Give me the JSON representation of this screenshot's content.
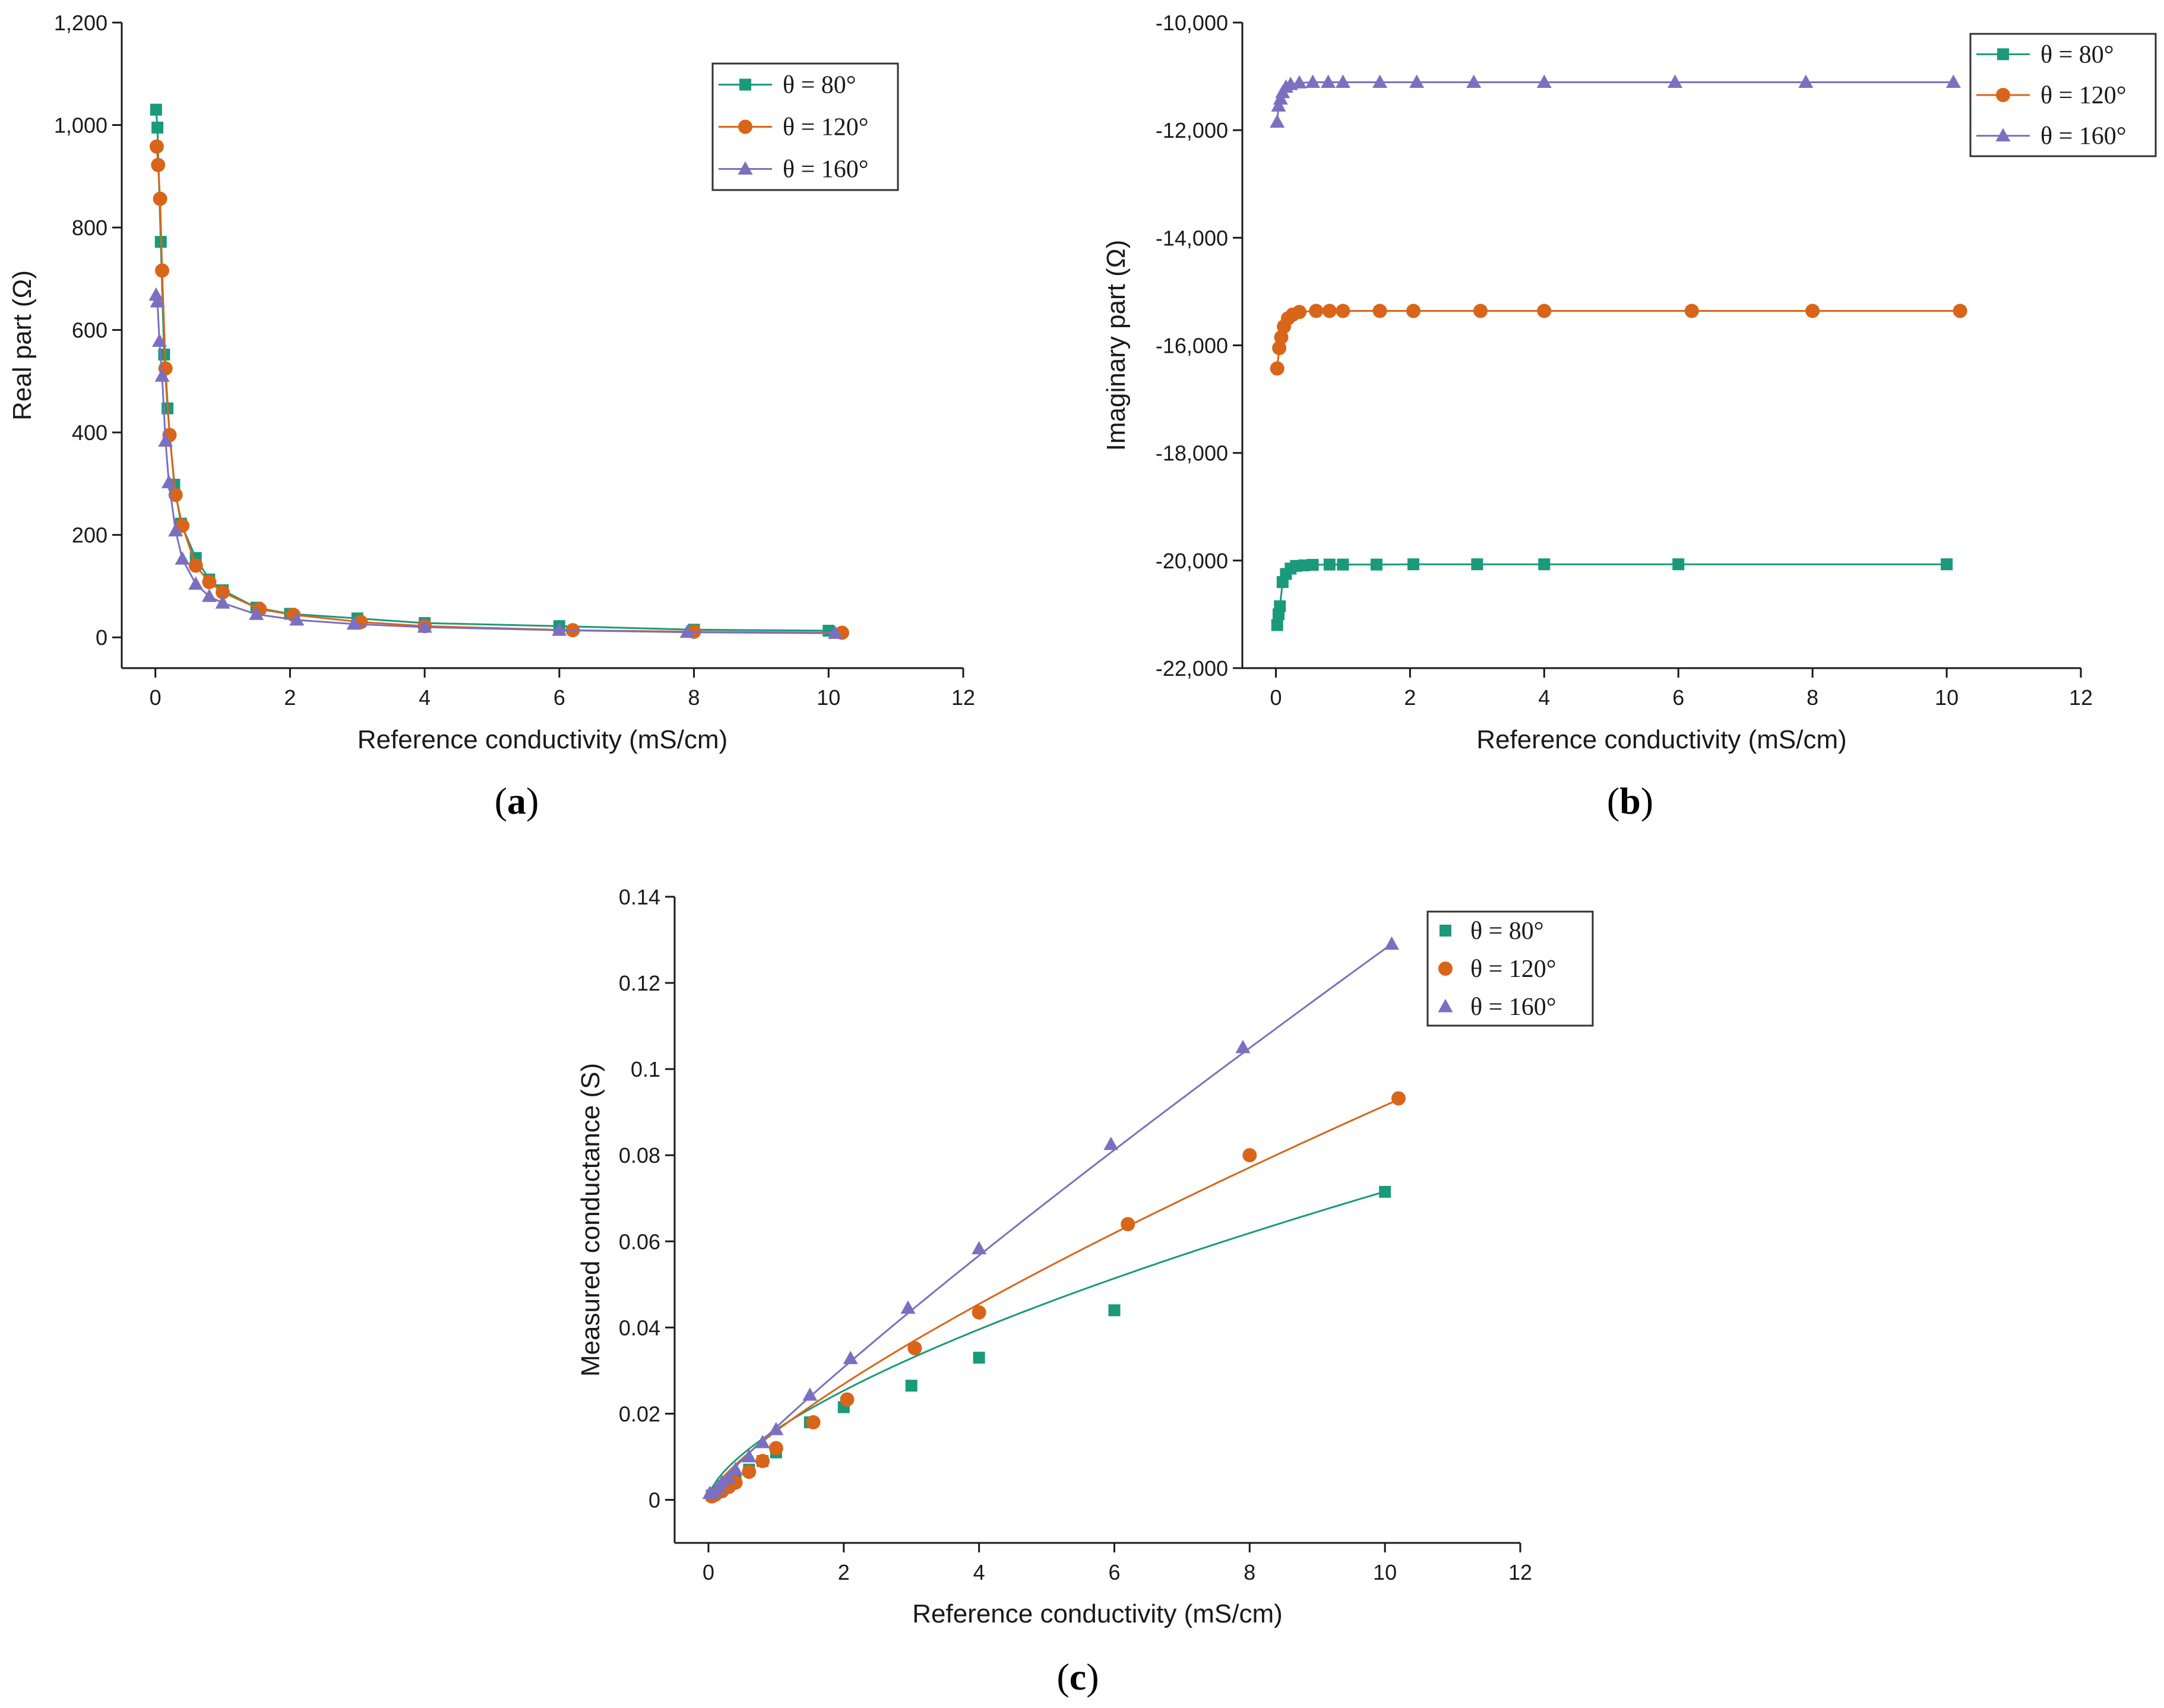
{
  "figure": {
    "colors": {
      "s80": "#1a9a7a",
      "s120": "#d9651a",
      "s160": "#7b70c0",
      "axis": "#1a1a1a"
    }
  },
  "chart_data": [
    {
      "panel": "a",
      "panel_label": {
        "open": "(",
        "letter": "a",
        "close": ")"
      },
      "type": "line",
      "title": "",
      "xlabel": "Reference conductivity (mS/cm)",
      "ylabel": "Real part (Ω)",
      "xlim": [
        -0.5,
        12
      ],
      "ylim": [
        -60,
        1200
      ],
      "xticks": [
        0,
        2,
        4,
        6,
        8,
        10,
        12
      ],
      "xtick_labels": [
        "0",
        "2",
        "4",
        "6",
        "8",
        "10",
        "12"
      ],
      "yticks": [
        0,
        200,
        400,
        600,
        800,
        1000,
        1200
      ],
      "ytick_labels": [
        "0",
        "200",
        "400",
        "600",
        "800",
        "1,000",
        "1,200"
      ],
      "legend": {
        "placement": "top-right",
        "lines": true
      },
      "series": [
        {
          "name": "θ = 80°",
          "marker": "square",
          "color": "#1a9a7a",
          "line": true,
          "x": [
            0.01,
            0.03,
            0.08,
            0.13,
            0.18,
            0.28,
            0.38,
            0.6,
            0.8,
            1.0,
            1.5,
            2.0,
            3.0,
            4.0,
            6.0,
            8.0,
            10.0
          ],
          "y": [
            1030,
            995,
            772,
            552,
            447,
            298,
            222,
            155,
            113,
            92,
            58,
            46,
            37,
            28,
            22,
            15,
            13
          ]
        },
        {
          "name": "θ = 120°",
          "marker": "circle",
          "color": "#d9651a",
          "line": true,
          "x": [
            0.02,
            0.04,
            0.07,
            0.1,
            0.15,
            0.21,
            0.3,
            0.4,
            0.6,
            0.8,
            1.0,
            1.55,
            2.05,
            3.05,
            4.0,
            6.2,
            8.0,
            10.2
          ],
          "y": [
            958,
            922,
            856,
            716,
            525,
            395,
            278,
            218,
            140,
            108,
            88,
            55,
            44,
            30,
            22,
            14,
            11,
            9
          ]
        },
        {
          "name": "θ = 160°",
          "marker": "triangle",
          "color": "#7b70c0",
          "line": true,
          "x": [
            0.01,
            0.03,
            0.06,
            0.1,
            0.15,
            0.2,
            0.3,
            0.4,
            0.6,
            0.8,
            1.0,
            1.5,
            2.1,
            2.95,
            4.0,
            6.0,
            7.9,
            10.1
          ],
          "y": [
            668,
            655,
            578,
            510,
            383,
            302,
            208,
            153,
            104,
            80,
            67,
            45,
            34,
            26,
            20,
            14,
            10,
            8
          ]
        }
      ]
    },
    {
      "panel": "b",
      "panel_label": {
        "open": "(",
        "letter": "b",
        "close": ")"
      },
      "type": "line",
      "title": "",
      "xlabel": "Reference conductivity (mS/cm)",
      "ylabel": "Imaginary part (Ω)",
      "xlim": [
        -0.5,
        12
      ],
      "ylim": [
        -22000,
        -10000
      ],
      "xticks": [
        0,
        2,
        4,
        6,
        8,
        10,
        12
      ],
      "xtick_labels": [
        "0",
        "2",
        "4",
        "6",
        "8",
        "10",
        "12"
      ],
      "yticks": [
        -22000,
        -20000,
        -18000,
        -16000,
        -14000,
        -12000,
        -10000
      ],
      "ytick_labels": [
        "-22,000",
        "-20,000",
        "-18,000",
        "-16,000",
        "-14,000",
        "-12,000",
        "-10,000"
      ],
      "legend": {
        "placement": "top-right",
        "lines": true
      },
      "series": [
        {
          "name": "θ = 80°",
          "marker": "square",
          "color": "#1a9a7a",
          "line": true,
          "x": [
            0.02,
            0.04,
            0.06,
            0.1,
            0.15,
            0.22,
            0.3,
            0.42,
            0.55,
            0.8,
            1.0,
            1.5,
            2.05,
            3.0,
            4.0,
            6.0,
            10.0
          ],
          "y": [
            -21200,
            -21000,
            -20850,
            -20400,
            -20250,
            -20150,
            -20100,
            -20090,
            -20080,
            -20075,
            -20075,
            -20075,
            -20070,
            -20070,
            -20070,
            -20070,
            -20070
          ]
        },
        {
          "name": "θ = 120°",
          "marker": "circle",
          "color": "#d9651a",
          "line": true,
          "x": [
            0.02,
            0.05,
            0.08,
            0.12,
            0.18,
            0.25,
            0.35,
            0.6,
            0.8,
            1.0,
            1.55,
            2.05,
            3.05,
            4.0,
            6.2,
            8.0,
            10.2
          ],
          "y": [
            -16430,
            -16050,
            -15850,
            -15650,
            -15500,
            -15430,
            -15380,
            -15360,
            -15360,
            -15360,
            -15360,
            -15360,
            -15360,
            -15360,
            -15360,
            -15360,
            -15360
          ]
        },
        {
          "name": "θ = 160°",
          "marker": "triangle",
          "color": "#7b70c0",
          "line": true,
          "x": [
            0.02,
            0.04,
            0.07,
            0.1,
            0.15,
            0.22,
            0.35,
            0.55,
            0.78,
            1.0,
            1.55,
            2.1,
            2.95,
            4.0,
            5.95,
            7.9,
            10.1
          ],
          "y": [
            -11850,
            -11550,
            -11420,
            -11300,
            -11200,
            -11150,
            -11120,
            -11110,
            -11110,
            -11110,
            -11110,
            -11110,
            -11110,
            -11110,
            -11110,
            -11110,
            -11110
          ]
        }
      ]
    },
    {
      "panel": "c",
      "panel_label": {
        "open": "(",
        "letter": "c",
        "close": ")"
      },
      "type": "scatter",
      "title": "",
      "xlabel": "Reference conductivity (mS/cm)",
      "ylabel": "Measured conductance (S)",
      "xlim": [
        -0.5,
        12
      ],
      "ylim": [
        -0.01,
        0.14
      ],
      "xticks": [
        0,
        2,
        4,
        6,
        8,
        10,
        12
      ],
      "xtick_labels": [
        "0",
        "2",
        "4",
        "6",
        "8",
        "10",
        "12"
      ],
      "yticks": [
        0,
        0.02,
        0.04,
        0.06,
        0.08,
        0.1,
        0.12,
        0.14
      ],
      "ytick_labels": [
        "0",
        "0.02",
        "0.04",
        "0.06",
        "0.08",
        "0.1",
        "0.12",
        "0.14"
      ],
      "legend": {
        "placement": "top-right",
        "lines": false
      },
      "series": [
        {
          "name": "θ = 80°",
          "marker": "square",
          "color": "#1a9a7a",
          "fit": true,
          "fit_k": 0.0158,
          "fit_exp": 0.653,
          "x": [
            0.05,
            0.1,
            0.2,
            0.3,
            0.4,
            0.6,
            0.8,
            1.0,
            1.5,
            2.0,
            3.0,
            4.0,
            6.0,
            10.0
          ],
          "y": [
            0.001,
            0.0015,
            0.0025,
            0.0035,
            0.005,
            0.007,
            0.009,
            0.011,
            0.018,
            0.0215,
            0.0265,
            0.033,
            0.044,
            0.0715
          ]
        },
        {
          "name": "θ = 120°",
          "marker": "circle",
          "color": "#d9651a",
          "fit": true,
          "fit_k": 0.01546,
          "fit_exp": 0.77,
          "x": [
            0.05,
            0.1,
            0.2,
            0.3,
            0.4,
            0.6,
            0.8,
            1.0,
            1.55,
            2.05,
            3.05,
            4.0,
            6.2,
            8.0,
            10.2
          ],
          "y": [
            0.0008,
            0.0012,
            0.002,
            0.003,
            0.004,
            0.0065,
            0.009,
            0.012,
            0.018,
            0.0233,
            0.0352,
            0.0435,
            0.064,
            0.08,
            0.0932
          ]
        },
        {
          "name": "θ = 160°",
          "marker": "triangle",
          "color": "#7b70c0",
          "fit": true,
          "fit_k": 0.0163,
          "fit_exp": 0.893,
          "x": [
            0.02,
            0.1,
            0.15,
            0.2,
            0.3,
            0.4,
            0.6,
            0.8,
            1.0,
            1.5,
            2.1,
            2.95,
            4.0,
            5.95,
            7.9,
            10.1
          ],
          "y": [
            0.0015,
            0.002,
            0.003,
            0.004,
            0.005,
            0.007,
            0.01,
            0.0133,
            0.0163,
            0.0243,
            0.0328,
            0.0445,
            0.0583,
            0.0825,
            0.105,
            0.129
          ]
        }
      ]
    }
  ]
}
